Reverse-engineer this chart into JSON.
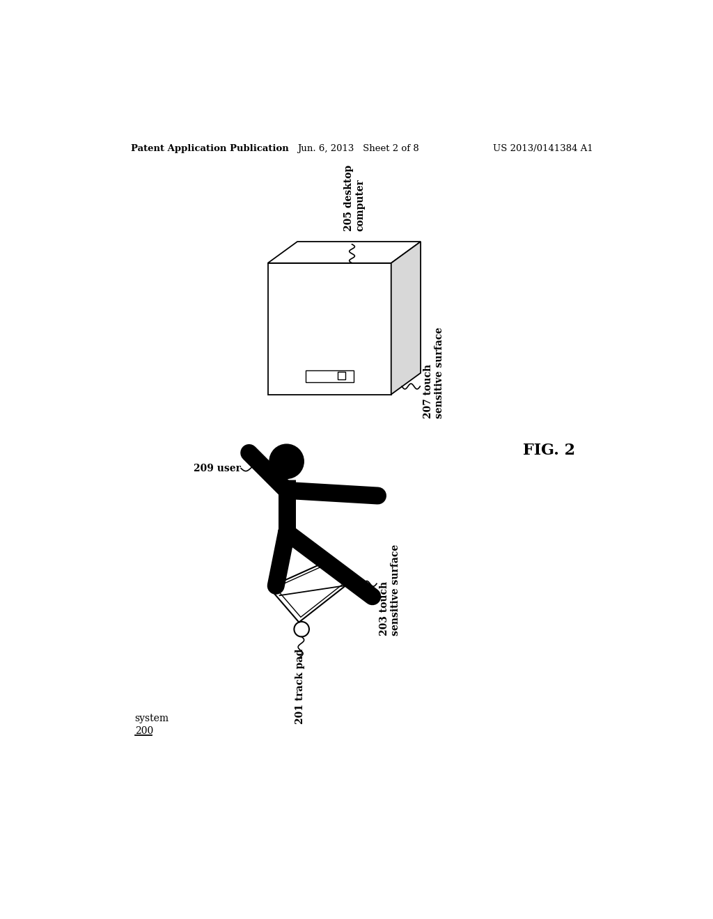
{
  "bg_color": "#ffffff",
  "header_left": "Patent Application Publication",
  "header_mid": "Jun. 6, 2013   Sheet 2 of 8",
  "header_right": "US 2013/0141384 A1",
  "fig_label": "FIG. 2",
  "label_205": "205 desktop\ncomputer",
  "label_207": "207 touch\nsensitive surface",
  "label_209": "209 user",
  "label_203": "203 touch\nsensitive surface",
  "label_201": "201 track pad",
  "system_line1": "system",
  "system_line2": "200"
}
